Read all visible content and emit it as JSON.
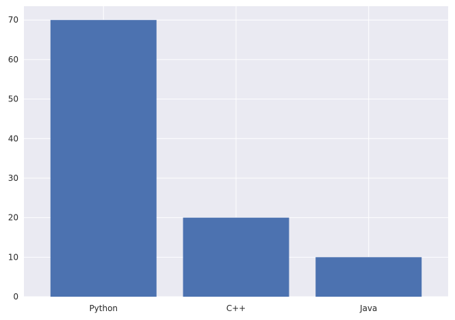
{
  "chart_data": {
    "type": "bar",
    "title": "",
    "xlabel": "",
    "ylabel": "",
    "categories": [
      "Python",
      "C++",
      "Java"
    ],
    "values": [
      70,
      20,
      10
    ],
    "ylim": [
      0,
      73.5
    ],
    "yticks": [
      0,
      10,
      20,
      30,
      40,
      50,
      60,
      70
    ],
    "grid": true,
    "legend": "none",
    "colors": {
      "bar": "#4c72b0",
      "plot_background": "#eaeaf2",
      "grid": "#ffffff",
      "tick_text": "#262626"
    }
  }
}
